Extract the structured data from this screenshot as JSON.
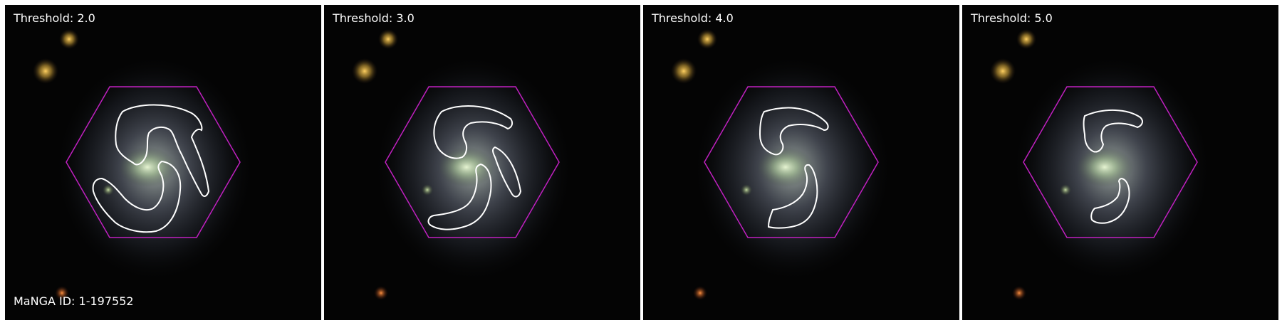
{
  "panels": [
    {
      "label": "Threshold: 2.0",
      "threshold": 2.0
    },
    {
      "label": "Threshold: 3.0",
      "threshold": 3.0
    },
    {
      "label": "Threshold: 4.0",
      "threshold": 4.0
    },
    {
      "label": "Threshold: 5.0",
      "threshold": 5.0
    }
  ],
  "manga_id": "MaNGA ID: 1-197552",
  "colors": {
    "contour": "#ffffff",
    "hexagon": "#c020c0",
    "background": "#040404"
  }
}
